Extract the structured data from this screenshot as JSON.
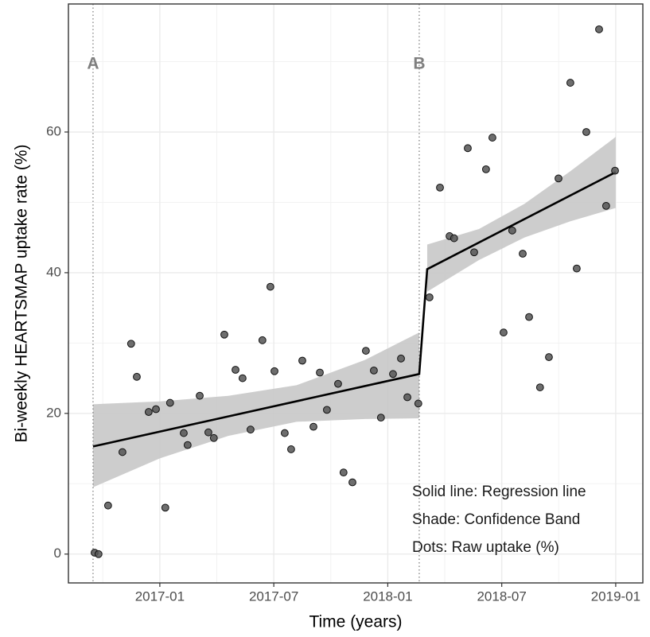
{
  "chart_data": {
    "type": "scatter",
    "x_label": "Time (years)",
    "y_label": "Bi-weekly HEARTSMAP uptake rate (%)",
    "xlim": [
      2016.599,
      2019.119
    ],
    "ylim": [
      -4.1,
      78.2
    ],
    "xticks": [
      {
        "value": 2017.0,
        "label": "2017-01"
      },
      {
        "value": 2017.5,
        "label": "2017-07"
      },
      {
        "value": 2018.0,
        "label": "2018-01"
      },
      {
        "value": 2018.5,
        "label": "2018-07"
      },
      {
        "value": 2019.0,
        "label": "2019-01"
      }
    ],
    "yticks": [
      0,
      20,
      40,
      60
    ],
    "grid": true,
    "minor_grid": true,
    "point_color": "#555555",
    "line_color": "#000000",
    "band_color": "#c8c8c8",
    "x": [
      2016.714,
      2016.731,
      2016.773,
      2016.836,
      2016.874,
      2016.899,
      2016.951,
      2016.983,
      2017.024,
      2017.045,
      2017.105,
      2017.122,
      2017.175,
      2017.213,
      2017.237,
      2017.283,
      2017.332,
      2017.363,
      2017.398,
      2017.45,
      2017.485,
      2017.503,
      2017.548,
      2017.576,
      2017.625,
      2017.674,
      2017.702,
      2017.733,
      2017.782,
      2017.806,
      2017.845,
      2017.904,
      2017.939,
      2017.97,
      2018.023,
      2018.058,
      2018.086,
      2018.134,
      2018.183,
      2018.229,
      2018.271,
      2018.291,
      2018.351,
      2018.379,
      2018.431,
      2018.459,
      2018.508,
      2018.546,
      2018.592,
      2018.62,
      2018.668,
      2018.707,
      2018.749,
      2018.801,
      2018.829,
      2018.871,
      2018.927,
      2018.958,
      2018.997
    ],
    "values": [
      0.2,
      0,
      6.9,
      14.5,
      29.9,
      25.2,
      20.2,
      20.6,
      6.6,
      21.5,
      17.2,
      15.5,
      22.5,
      17.3,
      16.5,
      31.2,
      26.2,
      25.0,
      17.7,
      30.4,
      38.0,
      26.0,
      17.2,
      14.9,
      27.5,
      18.1,
      25.8,
      20.5,
      24.2,
      11.6,
      10.2,
      28.9,
      26.1,
      19.4,
      25.6,
      27.8,
      22.3,
      21.4,
      36.5,
      52.1,
      45.2,
      44.9,
      57.7,
      42.9,
      54.7,
      59.2,
      31.5,
      46.0,
      42.7,
      33.7,
      23.7,
      28.0,
      53.4,
      67.0,
      40.6,
      60.0,
      74.6,
      49.5,
      54.5
    ],
    "fit": {
      "x": [
        2016.707,
        2018.138,
        2018.173,
        2019.0
      ],
      "values": [
        15.3,
        25.6,
        40.5,
        54.3
      ]
    },
    "bands": [
      {
        "x": [
          2016.707,
          2017.0,
          2017.3,
          2017.6,
          2017.9,
          2018.138
        ],
        "lower": [
          9.5,
          13.6,
          16.8,
          18.8,
          19.2,
          19.3
        ],
        "upper": [
          21.3,
          21.7,
          22.5,
          24.0,
          27.6,
          31.5
        ]
      },
      {
        "x": [
          2018.173,
          2018.4,
          2018.6,
          2018.8,
          2019.0
        ],
        "lower": [
          37.3,
          41.8,
          45.0,
          47.3,
          49.2
        ],
        "upper": [
          44.0,
          46.2,
          49.8,
          54.4,
          59.3
        ]
      }
    ],
    "annotations": [
      {
        "text": "A",
        "x": 2016.707
      },
      {
        "text": "B",
        "x": 2018.138
      }
    ],
    "notes": [
      "Solid line: Regression line",
      "Shade: Confidence Band",
      "Dots: Raw uptake (%)"
    ]
  }
}
